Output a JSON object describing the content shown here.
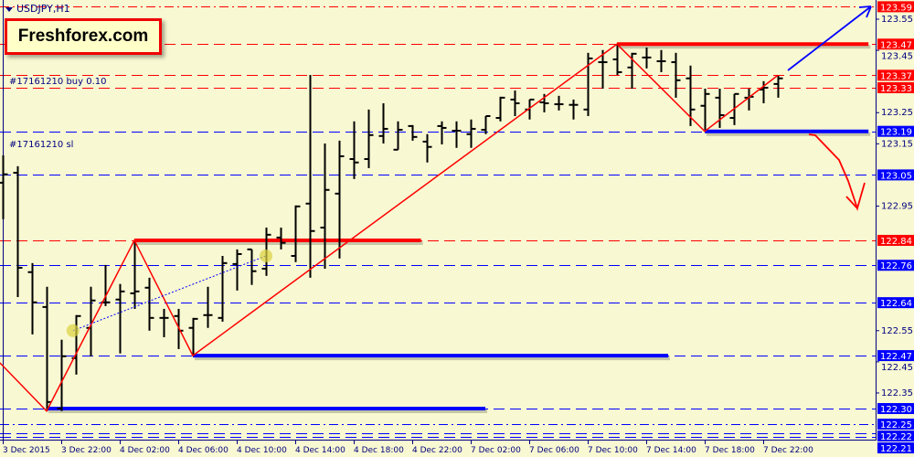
{
  "window": {
    "symbol": "USDJPY,H1",
    "logo": "Freshforex.com"
  },
  "orders": [
    {
      "label": "#17161210 buy 0.10",
      "price": 123.33
    },
    {
      "label": "#17161210 sl",
      "price": 123.13
    }
  ],
  "colors": {
    "background": "#F8F8D2",
    "axis": "#000080",
    "bars": "#000000",
    "resistance": "#FF0000",
    "support": "#0000FF"
  },
  "price_axis": {
    "ticks": [
      "123.55",
      "123.45",
      "123.25",
      "123.15",
      "122.95",
      "122.55",
      "122.45",
      "122.35"
    ],
    "range": [
      122.2,
      123.6
    ]
  },
  "time_axis": {
    "labels": [
      "3 Dec 2015",
      "3 Dec 22:00",
      "4 Dec 02:00",
      "4 Dec 06:00",
      "4 Dec 10:00",
      "4 Dec 14:00",
      "4 Dec 18:00",
      "4 Dec 22:00",
      "7 Dec 02:00",
      "7 Dec 06:00",
      "7 Dec 10:00",
      "7 Dec 14:00",
      "7 Dec 18:00",
      "7 Dec 22:00"
    ]
  },
  "levels": [
    {
      "price": "123.59",
      "color": "#FF0000",
      "style": "dashdot"
    },
    {
      "price": "123.47",
      "color": "#FF0000",
      "style": "dash"
    },
    {
      "price": "123.37",
      "color": "#FF0000",
      "style": "dash"
    },
    {
      "price": "123.33",
      "color": "#FF0000",
      "style": "dash"
    },
    {
      "price": "123.19",
      "color": "#0000FF",
      "style": "dash"
    },
    {
      "price": "123.05",
      "color": "#0000FF",
      "style": "dash"
    },
    {
      "price": "122.84",
      "color": "#FF0000",
      "style": "dash"
    },
    {
      "price": "122.76",
      "color": "#0000FF",
      "style": "dash"
    },
    {
      "price": "122.64",
      "color": "#0000FF",
      "style": "dash"
    },
    {
      "price": "122.47",
      "color": "#0000FF",
      "style": "dash"
    },
    {
      "price": "122.30",
      "color": "#0000FF",
      "style": "dash"
    },
    {
      "price": "122.25",
      "color": "#0000FF",
      "style": "dashdot"
    },
    {
      "price": "122.22",
      "color": "#0000FF",
      "style": "dash"
    },
    {
      "price": "122.21",
      "color": "#0000FF",
      "style": "dash"
    }
  ],
  "chart_data": {
    "type": "ohlc",
    "timeframe": "H1",
    "ohlc": [
      [
        123.025,
        123.113,
        122.908,
        123.052
      ],
      [
        123.057,
        123.078,
        122.658,
        122.752
      ],
      [
        122.738,
        122.767,
        122.538,
        122.641
      ],
      [
        122.626,
        122.691,
        122.292,
        122.321
      ],
      [
        122.3,
        122.521,
        122.292,
        122.468
      ],
      [
        122.462,
        122.6,
        122.409,
        122.597
      ],
      [
        122.559,
        122.691,
        122.468,
        122.647
      ],
      [
        122.641,
        122.761,
        122.629,
        122.641
      ],
      [
        122.65,
        122.7,
        122.477,
        122.676
      ],
      [
        122.67,
        122.837,
        122.62,
        122.676
      ],
      [
        122.688,
        122.72,
        122.55,
        122.591
      ],
      [
        122.591,
        122.62,
        122.529,
        122.591
      ],
      [
        122.597,
        122.62,
        122.491,
        122.55
      ],
      [
        122.559,
        122.591,
        122.468,
        122.588
      ],
      [
        122.6,
        122.691,
        122.559,
        122.6
      ],
      [
        122.591,
        122.79,
        122.579,
        122.767
      ],
      [
        122.764,
        122.811,
        122.679,
        122.796
      ],
      [
        122.811,
        122.811,
        122.697,
        122.741
      ],
      [
        122.749,
        122.881,
        122.726,
        122.858
      ],
      [
        122.849,
        122.881,
        122.811,
        122.832
      ],
      [
        122.79,
        122.952,
        122.77,
        122.949
      ],
      [
        122.958,
        123.371,
        122.72,
        122.87
      ],
      [
        122.881,
        123.151,
        122.749,
        123.002
      ],
      [
        122.99,
        123.16,
        122.782,
        123.11
      ],
      [
        123.101,
        123.222,
        123.037,
        123.09
      ],
      [
        123.101,
        123.26,
        123.072,
        123.178
      ],
      [
        123.175,
        123.28,
        123.151,
        123.198
      ],
      [
        123.131,
        123.222,
        123.131,
        123.195
      ],
      [
        123.207,
        123.21,
        123.16,
        123.172
      ],
      [
        123.157,
        123.181,
        123.09,
        123.14
      ],
      [
        123.207,
        123.222,
        123.148,
        123.201
      ],
      [
        123.192,
        123.222,
        123.137,
        123.192
      ],
      [
        123.181,
        123.228,
        123.137,
        123.198
      ],
      [
        123.195,
        123.239,
        123.181,
        123.239
      ],
      [
        123.233,
        123.301,
        123.222,
        123.298
      ],
      [
        123.292,
        123.321,
        123.239,
        123.28
      ],
      [
        123.26,
        123.292,
        123.228,
        123.292
      ],
      [
        123.283,
        123.31,
        123.251,
        123.28
      ],
      [
        123.277,
        123.304,
        123.257,
        123.277
      ],
      [
        123.275,
        123.292,
        123.228,
        123.275
      ],
      [
        123.26,
        123.442,
        123.239,
        123.424
      ],
      [
        123.412,
        123.451,
        123.327,
        123.412
      ],
      [
        123.421,
        123.471,
        123.371,
        123.38
      ],
      [
        123.395,
        123.442,
        123.327,
        123.439
      ],
      [
        123.427,
        123.459,
        123.392,
        123.427
      ],
      [
        123.415,
        123.451,
        123.38,
        123.415
      ],
      [
        123.412,
        123.442,
        123.298,
        123.354
      ],
      [
        123.36,
        123.401,
        123.207,
        123.26
      ],
      [
        123.272,
        123.327,
        123.195,
        123.31
      ],
      [
        123.298,
        123.327,
        123.201,
        123.242
      ],
      [
        123.233,
        123.31,
        123.21,
        123.31
      ],
      [
        123.298,
        123.327,
        123.257,
        123.301
      ],
      [
        123.324,
        123.351,
        123.28,
        123.33
      ],
      [
        123.342,
        123.368,
        123.298,
        123.36
      ]
    ],
    "zigzag": [
      [
        -0.2,
        122.447
      ],
      [
        3,
        122.292
      ],
      [
        9,
        122.84
      ],
      [
        13,
        122.47
      ],
      [
        42,
        123.47
      ],
      [
        48,
        123.19
      ],
      [
        53,
        123.37
      ]
    ],
    "segments": [
      {
        "from": 9,
        "to": 28.6,
        "price": 122.84,
        "color": "#FF0000"
      },
      {
        "from": 42,
        "to": 59.2,
        "price": 123.47,
        "color": "#FF0000"
      },
      {
        "from": 13,
        "to": 45.5,
        "price": 122.47,
        "color": "#0000FF"
      },
      {
        "from": 48,
        "to": 59.2,
        "price": 123.19,
        "color": "#0000FF"
      },
      {
        "from": 3,
        "to": 33,
        "price": 122.3,
        "color": "#0000FF"
      }
    ],
    "trade_line": [
      [
        4.8,
        122.55
      ],
      [
        18,
        122.79
      ]
    ],
    "scenarios": [
      {
        "direction": "up",
        "color": "#0000FF"
      },
      {
        "direction": "down",
        "color": "#FF0000"
      }
    ]
  }
}
